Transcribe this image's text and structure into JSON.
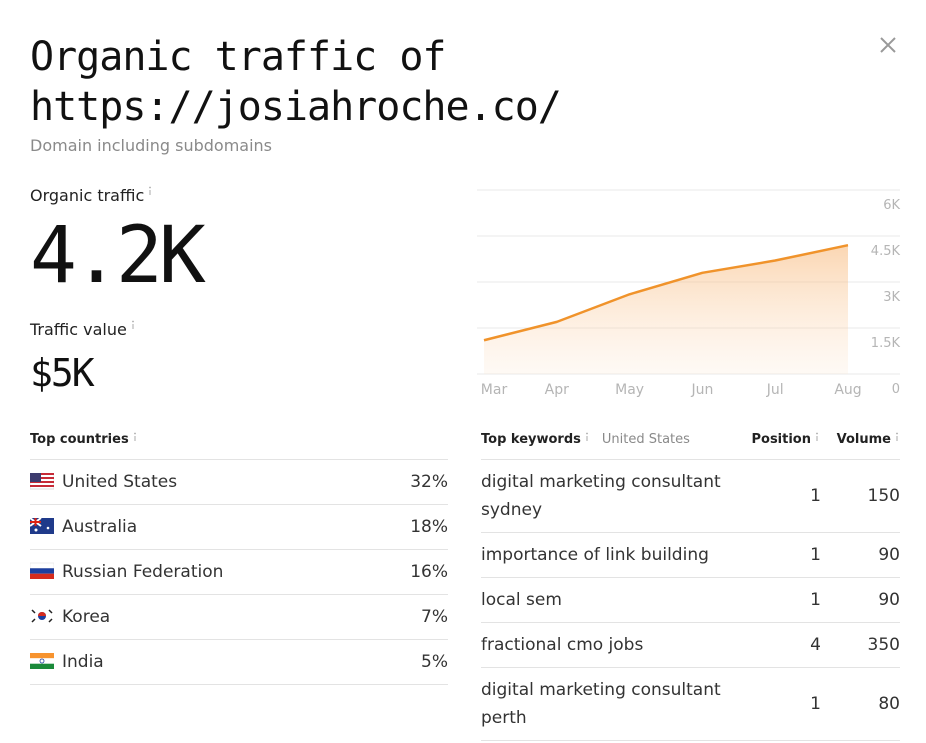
{
  "header": {
    "title": "Organic traffic of https://josiahroche.co/",
    "subtitle": "Domain including subdomains"
  },
  "metrics": {
    "organic_traffic": {
      "label": "Organic traffic",
      "value": "4.2K"
    },
    "traffic_value": {
      "label": "Traffic value",
      "value": "$5K"
    }
  },
  "chart_data": {
    "type": "area",
    "categories": [
      "Mar",
      "Apr",
      "May",
      "Jun",
      "Jul",
      "Aug"
    ],
    "values": [
      1100,
      1700,
      2600,
      3300,
      3700,
      4200
    ],
    "color": "#f0932b",
    "ylim": [
      0,
      6000
    ],
    "yticks": [
      0,
      {
        "value": 1500,
        "label": "1.5K"
      },
      {
        "value": 3000,
        "label": "3K"
      },
      {
        "value": 4500,
        "label": "4.5K"
      },
      {
        "value": 6000,
        "label": "6K"
      }
    ],
    "grid": true
  },
  "countries": {
    "title": "Top countries",
    "rows": [
      {
        "name": "United States",
        "share": "32%"
      },
      {
        "name": "Australia",
        "share": "18%"
      },
      {
        "name": "Russian Federation",
        "share": "16%"
      },
      {
        "name": "Korea",
        "share": "7%"
      },
      {
        "name": "India",
        "share": "5%"
      }
    ]
  },
  "keywords": {
    "title": "Top keywords",
    "location": "United States",
    "columns": [
      "Position",
      "Volume"
    ],
    "rows": [
      {
        "keyword": "digital marketing consultant sydney",
        "position": 1,
        "volume": 150
      },
      {
        "keyword": "importance of link building",
        "position": 1,
        "volume": 90
      },
      {
        "keyword": "local sem",
        "position": 1,
        "volume": 90
      },
      {
        "keyword": "fractional cmo jobs",
        "position": 4,
        "volume": 350
      },
      {
        "keyword": "digital marketing consultant perth",
        "position": 1,
        "volume": 80
      }
    ]
  }
}
